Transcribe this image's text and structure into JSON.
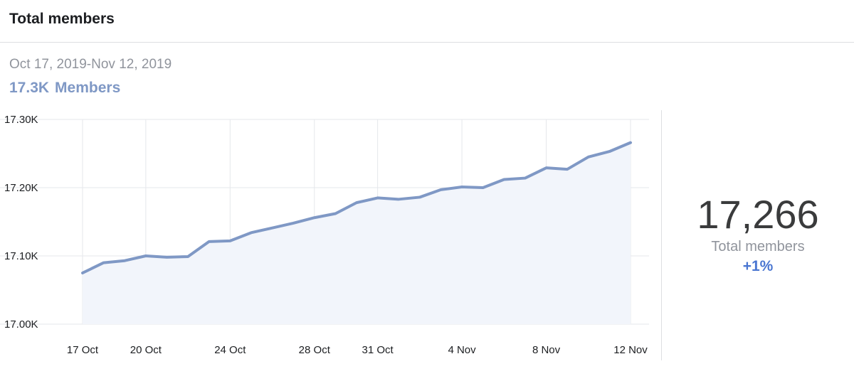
{
  "header": {
    "title": "Total members"
  },
  "summary": {
    "date_range": "Oct 17, 2019-Nov 12, 2019",
    "headline_value": "17.3K",
    "headline_label": "Members"
  },
  "stat": {
    "value": "17,266",
    "label": "Total members",
    "change": "+1%"
  },
  "colors": {
    "line": "#7f98c5",
    "area": "#f2f5fb",
    "grid": "#e5e7eb",
    "accent": "#4a76d1"
  },
  "chart_data": {
    "type": "area",
    "title": "",
    "xlabel": "",
    "ylabel": "",
    "ylim": [
      17000,
      17300
    ],
    "yticks": [
      {
        "value": 17300,
        "label": "17.30K"
      },
      {
        "value": 17200,
        "label": "17.20K"
      },
      {
        "value": 17100,
        "label": "17.10K"
      },
      {
        "value": 17000,
        "label": "17.00K"
      }
    ],
    "xticks": [
      "17 Oct",
      "20 Oct",
      "24 Oct",
      "28 Oct",
      "31 Oct",
      "4 Nov",
      "8 Nov",
      "12 Nov"
    ],
    "grid": true,
    "series": [
      {
        "x": [
          "17 Oct",
          "18 Oct",
          "19 Oct",
          "20 Oct",
          "21 Oct",
          "22 Oct",
          "23 Oct",
          "24 Oct",
          "25 Oct",
          "26 Oct",
          "27 Oct",
          "28 Oct",
          "29 Oct",
          "30 Oct",
          "31 Oct",
          "1 Nov",
          "2 Nov",
          "3 Nov",
          "4 Nov",
          "5 Nov",
          "6 Nov",
          "7 Nov",
          "8 Nov",
          "9 Nov",
          "10 Nov",
          "11 Nov",
          "12 Nov"
        ],
        "values": [
          17075,
          17090,
          17093,
          17100,
          17098,
          17099,
          17121,
          17122,
          17134,
          17141,
          17148,
          17156,
          17162,
          17178,
          17185,
          17183,
          17186,
          17197,
          17201,
          17200,
          17212,
          17214,
          17229,
          17227,
          17245,
          17253,
          17266
        ]
      }
    ]
  }
}
